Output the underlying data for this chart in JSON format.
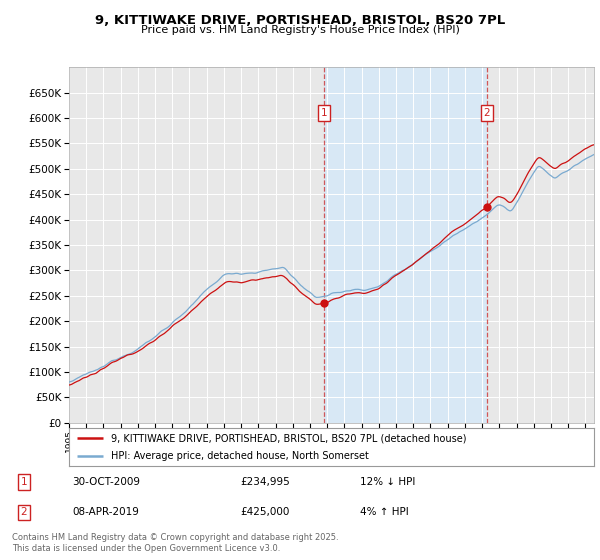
{
  "title_line1": "9, KITTIWAKE DRIVE, PORTISHEAD, BRISTOL, BS20 7PL",
  "title_line2": "Price paid vs. HM Land Registry's House Price Index (HPI)",
  "background_color": "#ffffff",
  "plot_bg_color": "#e8e8e8",
  "plot_highlight_color": "#d8e8f5",
  "grid_color": "#ffffff",
  "hpi_color": "#7aaad0",
  "price_color": "#cc1111",
  "annotation1": {
    "label": "1",
    "date_str": "30-OCT-2009",
    "price": 234995,
    "note": "12% ↓ HPI"
  },
  "annotation2": {
    "label": "2",
    "date_str": "08-APR-2019",
    "price": 425000,
    "note": "4% ↑ HPI"
  },
  "legend_line1": "9, KITTIWAKE DRIVE, PORTISHEAD, BRISTOL, BS20 7PL (detached house)",
  "legend_line2": "HPI: Average price, detached house, North Somerset",
  "footer": "Contains HM Land Registry data © Crown copyright and database right 2025.\nThis data is licensed under the Open Government Licence v3.0.",
  "ylim": [
    0,
    700000
  ],
  "yticks": [
    0,
    50000,
    100000,
    150000,
    200000,
    250000,
    300000,
    350000,
    400000,
    450000,
    500000,
    550000,
    600000,
    650000
  ],
  "sale1_x": 2009.83,
  "sale2_x": 2019.27,
  "xmin": 1995,
  "xmax": 2025.5
}
